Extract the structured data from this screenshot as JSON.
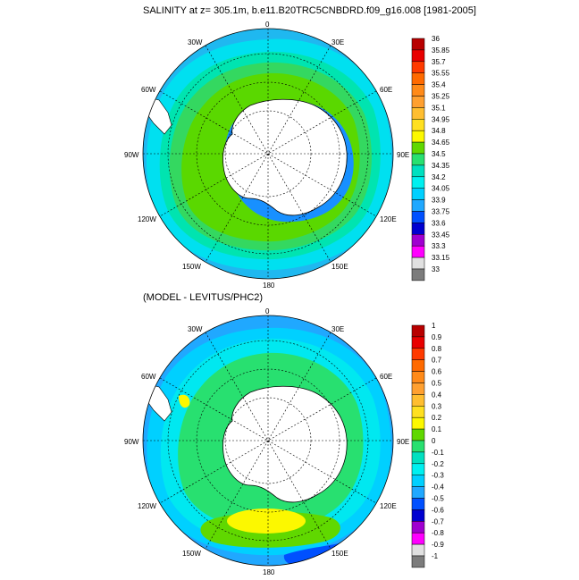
{
  "top": {
    "title": "SALINITY at z= 305.1m, b.e11.B20TRC5CNBDRD.f09_g16.008 [1981-2005]",
    "lon_labels": [
      "0",
      "30E",
      "60E",
      "90E",
      "120E",
      "150E",
      "180",
      "150W",
      "120W",
      "90W",
      "60W",
      "30W"
    ],
    "colorbar": {
      "labels": [
        "36",
        "35.85",
        "35.7",
        "35.55",
        "35.4",
        "35.25",
        "35.1",
        "34.95",
        "34.8",
        "34.65",
        "34.5",
        "34.35",
        "34.2",
        "34.05",
        "33.9",
        "33.75",
        "33.6",
        "33.45",
        "33.3",
        "33.15",
        "33"
      ],
      "colors": [
        "#b80000",
        "#e80000",
        "#ff3a00",
        "#ff6a00",
        "#ff8a18",
        "#ffa030",
        "#ffbe30",
        "#ffe020",
        "#fcf800",
        "#60d800",
        "#28e070",
        "#00e0c0",
        "#00f0f0",
        "#00d0ff",
        "#20a8ff",
        "#0050ff",
        "#0000d0",
        "#a000d0",
        "#ff00ff",
        "#e0e0e0",
        "#7c7c7c"
      ]
    },
    "colors": {
      "ocean_outer": "#1fb8f0",
      "band_1": "#00e0f0",
      "band_2": "#00e4b0",
      "band_3": "#34d860",
      "band_4": "#5ad800",
      "coast_shelf": "#1890ff",
      "land": "#ffffff"
    }
  },
  "bottom": {
    "title": "(MODEL - LEVITUS/PHC2)",
    "lon_labels": [
      "0",
      "30E",
      "60E",
      "90E",
      "120E",
      "150E",
      "180",
      "150W",
      "120W",
      "90W",
      "60W",
      "30W"
    ],
    "colorbar": {
      "labels": [
        "1",
        "0.9",
        "0.8",
        "0.7",
        "0.6",
        "0.5",
        "0.4",
        "0.3",
        "0.2",
        "0.1",
        "0",
        "-0.1",
        "-0.2",
        "-0.3",
        "-0.4",
        "-0.5",
        "-0.6",
        "-0.7",
        "-0.8",
        "-0.9",
        "-1"
      ],
      "colors": [
        "#b80000",
        "#e80000",
        "#ff3a00",
        "#ff6a00",
        "#ff8a18",
        "#ffa030",
        "#ffbe30",
        "#ffe020",
        "#fcf800",
        "#60d800",
        "#28e070",
        "#00e0c0",
        "#00f0f0",
        "#00d0ff",
        "#20a8ff",
        "#0050ff",
        "#0000d0",
        "#a000d0",
        "#ff00ff",
        "#e0e0e0",
        "#7c7c7c"
      ]
    },
    "colors": {
      "ocean_outer": "#20a8ff",
      "band_1": "#00d0ff",
      "band_2": "#00e8f0",
      "band_3": "#28e070",
      "band_4": "#60d800",
      "anomaly": "#fcf800",
      "deep_low": "#0050ff",
      "land": "#ffffff"
    }
  }
}
